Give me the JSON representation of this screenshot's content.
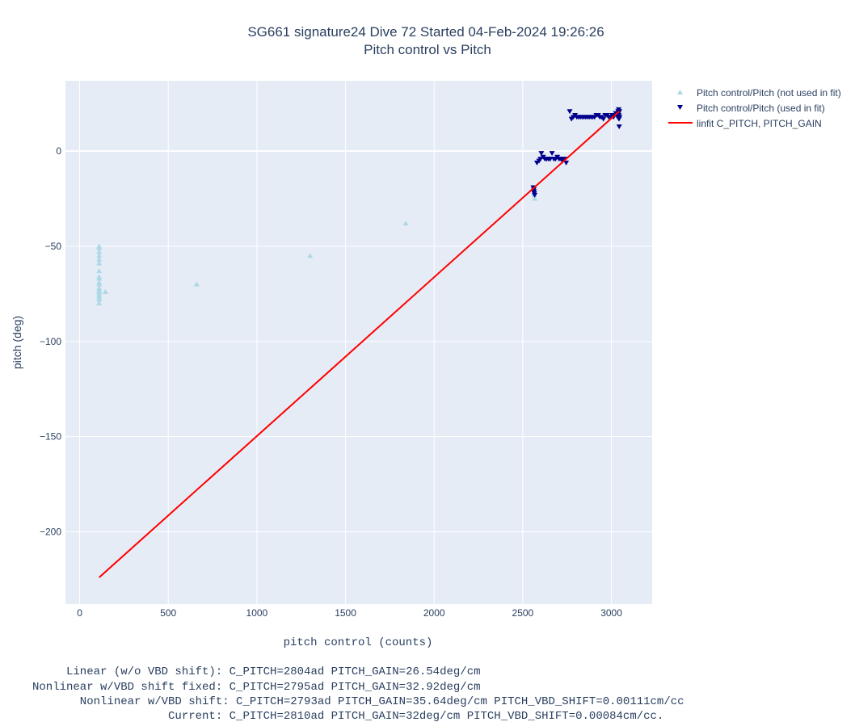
{
  "chart_data": {
    "type": "scatter",
    "title_lines": [
      "SG661 signature24 Dive 72 Started 04-Feb-2024 19:26:26",
      "Pitch control vs Pitch"
    ],
    "xlabel": "pitch control (counts)",
    "ylabel": "pitch (deg)",
    "xlim": [
      -80,
      3230
    ],
    "ylim": [
      -238,
      37
    ],
    "xticks": [
      0,
      500,
      1000,
      1500,
      2000,
      2500,
      3000
    ],
    "yticks": [
      0,
      -50,
      -100,
      -150,
      -200
    ],
    "xtick_labels": [
      "0",
      "500",
      "1000",
      "1500",
      "2000",
      "2500",
      "3000"
    ],
    "ytick_labels": [
      "0",
      "−50",
      "−100",
      "−150",
      "−200"
    ],
    "grid": true,
    "legend_position": "right",
    "plot_bg": "#e5ecf6",
    "series": [
      {
        "name": "Pitch control/Pitch (not used in fit)",
        "marker": "triangle-up",
        "color": "#add8e6",
        "points": [
          [
            110,
            -50
          ],
          [
            110,
            -51
          ],
          [
            110,
            -53
          ],
          [
            110,
            -55
          ],
          [
            110,
            -57
          ],
          [
            110,
            -59
          ],
          [
            110,
            -63
          ],
          [
            110,
            -66
          ],
          [
            110,
            -67
          ],
          [
            110,
            -69
          ],
          [
            110,
            -70
          ],
          [
            110,
            -72
          ],
          [
            110,
            -73
          ],
          [
            110,
            -74
          ],
          [
            110,
            -75
          ],
          [
            110,
            -76
          ],
          [
            110,
            -77
          ],
          [
            110,
            -78
          ],
          [
            110,
            -80
          ],
          [
            145,
            -74
          ],
          [
            660,
            -70
          ],
          [
            1300,
            -55
          ],
          [
            1840,
            -38
          ],
          [
            2565,
            -20
          ],
          [
            2565,
            -22
          ],
          [
            2565,
            -23
          ],
          [
            2568,
            -25
          ]
        ]
      },
      {
        "name": "Pitch control/Pitch (used in fit)",
        "marker": "triangle-down",
        "color": "#00008b",
        "points": [
          [
            2560,
            -19
          ],
          [
            2562,
            -20
          ],
          [
            2563,
            -21
          ],
          [
            2565,
            -22
          ],
          [
            2567,
            -23
          ],
          [
            2580,
            -6
          ],
          [
            2592,
            -5
          ],
          [
            2600,
            -4
          ],
          [
            2605,
            -1
          ],
          [
            2615,
            -3
          ],
          [
            2625,
            -4
          ],
          [
            2635,
            -4
          ],
          [
            2645,
            -4
          ],
          [
            2655,
            -4
          ],
          [
            2665,
            -1
          ],
          [
            2675,
            -4
          ],
          [
            2685,
            -4
          ],
          [
            2695,
            -3
          ],
          [
            2705,
            -4
          ],
          [
            2715,
            -4
          ],
          [
            2725,
            -5
          ],
          [
            2735,
            -4
          ],
          [
            2745,
            -6
          ],
          [
            2765,
            21
          ],
          [
            2775,
            17
          ],
          [
            2785,
            18
          ],
          [
            2795,
            19
          ],
          [
            2805,
            18
          ],
          [
            2815,
            18
          ],
          [
            2825,
            18
          ],
          [
            2835,
            18
          ],
          [
            2845,
            18
          ],
          [
            2855,
            18
          ],
          [
            2865,
            18
          ],
          [
            2875,
            18
          ],
          [
            2885,
            18
          ],
          [
            2895,
            18
          ],
          [
            2905,
            18
          ],
          [
            2915,
            19
          ],
          [
            2925,
            19
          ],
          [
            2935,
            18
          ],
          [
            2945,
            18
          ],
          [
            2955,
            17
          ],
          [
            2965,
            19
          ],
          [
            2975,
            19
          ],
          [
            2985,
            18
          ],
          [
            2995,
            18
          ],
          [
            3005,
            19
          ],
          [
            3012,
            18
          ],
          [
            3018,
            19
          ],
          [
            3025,
            20
          ],
          [
            3030,
            19
          ],
          [
            3035,
            18
          ],
          [
            3038,
            21
          ],
          [
            3040,
            20
          ],
          [
            3041,
            22
          ],
          [
            3042,
            19
          ],
          [
            3043,
            17
          ],
          [
            3044,
            13
          ],
          [
            3045,
            21
          ],
          [
            3046,
            18
          ]
        ]
      },
      {
        "name": "linfit C_PITCH, PITCH_GAIN",
        "line": true,
        "color": "#ff0000",
        "points": [
          [
            110,
            -224
          ],
          [
            3045,
            21
          ]
        ]
      }
    ],
    "annotations": [
      "     Linear (w/o VBD shift): C_PITCH=2804ad PITCH_GAIN=26.54deg/cm",
      "Nonlinear w/VBD shift fixed: C_PITCH=2795ad PITCH_GAIN=32.92deg/cm",
      "       Nonlinear w/VBD shift: C_PITCH=2793ad PITCH_GAIN=35.64deg/cm PITCH_VBD_SHIFT=0.00111cm/cc",
      "                    Current: C_PITCH=2810ad PITCH_GAIN=32deg/cm PITCH_VBD_SHIFT=0.00084cm/cc."
    ]
  }
}
